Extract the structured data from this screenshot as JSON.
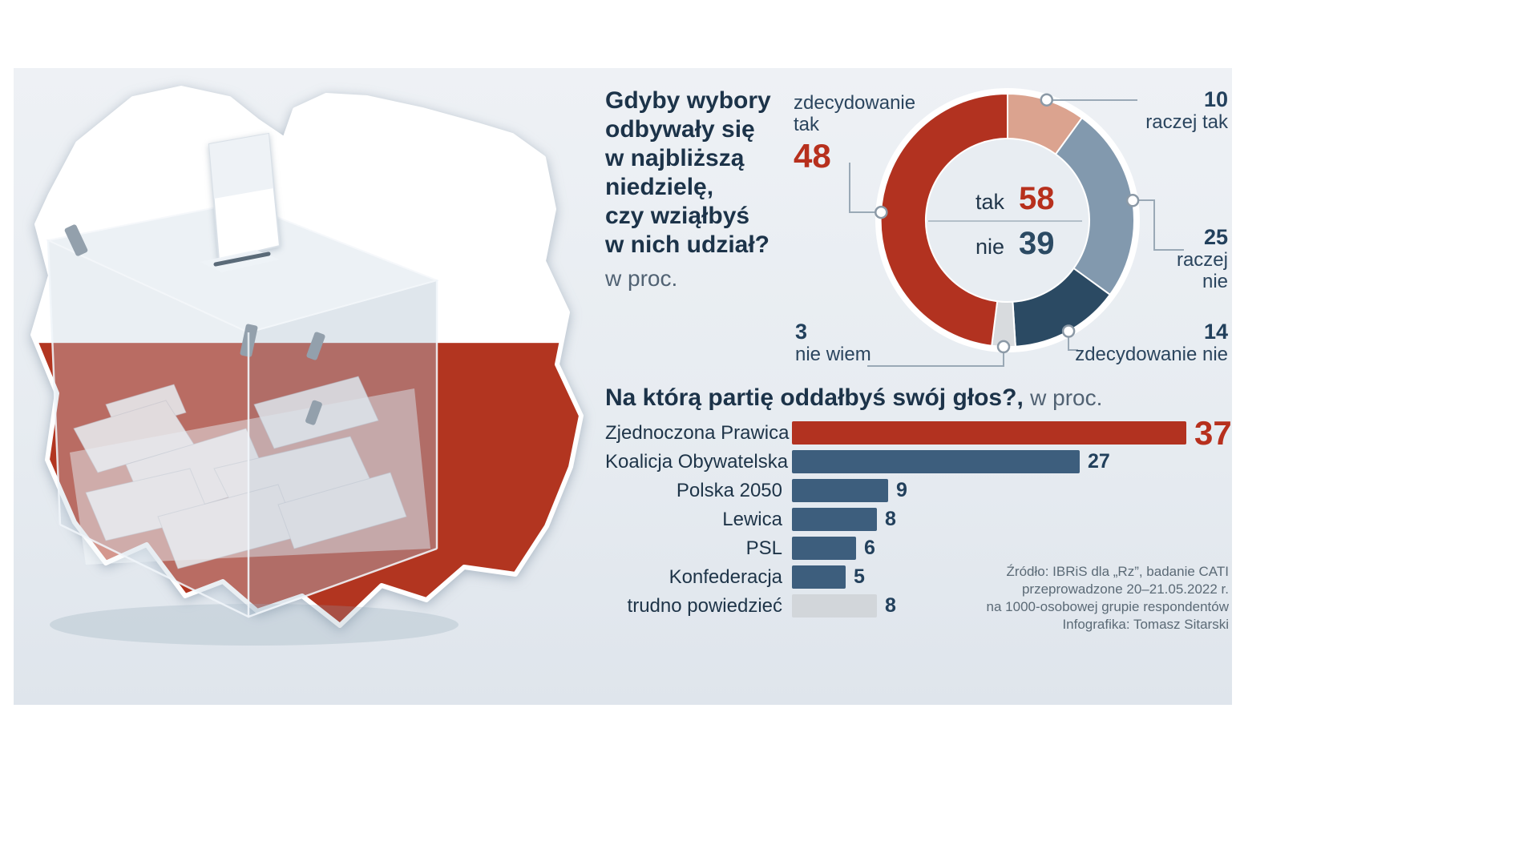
{
  "page": {
    "panel_bg": "#e8edf2"
  },
  "question": {
    "text": "Gdyby wybory\nodbywały się\nw najbliższą\nniedzielę,\nczy wziąłbyś\nw nich udział?",
    "unit": "w proc."
  },
  "chart_data": [
    {
      "type": "pie",
      "variant": "donut",
      "title": "Gdyby wybory odbywały się w najbliższą niedzielę, czy wziąłbyś w nich udział?",
      "unit": "w proc.",
      "direction": "clockwise",
      "start_angle_deg": 0,
      "segments": [
        {
          "label": "raczej tak",
          "value": 10,
          "color": "#dba38f"
        },
        {
          "label": "raczej nie",
          "value": 25,
          "color": "#8299ae"
        },
        {
          "label": "zdecydowanie nie",
          "value": 14,
          "color": "#2b4a63"
        },
        {
          "label": "nie wiem",
          "value": 3,
          "color": "#d8dbde"
        },
        {
          "label": "zdecydowanie tak",
          "value": 48,
          "color": "#b23220"
        }
      ],
      "center_summary": [
        {
          "label": "tak",
          "value": 58,
          "value_color": "#b7301d"
        },
        {
          "label": "nie",
          "value": 39,
          "value_color": "#2b4a63"
        }
      ]
    },
    {
      "type": "bar",
      "orientation": "horizontal",
      "title": "Na którą partię oddałbyś swój głos?,",
      "unit": "w proc.",
      "categories": [
        "Zjednoczona Prawica",
        "Koalicja Obywatelska",
        "Polska 2050",
        "Lewica",
        "PSL",
        "Konfederacja",
        "trudno powiedzieć"
      ],
      "values": [
        37,
        27,
        9,
        8,
        6,
        5,
        8
      ],
      "colors": [
        "#b23220",
        "#3d5e7d",
        "#3d5e7d",
        "#3d5e7d",
        "#3d5e7d",
        "#3d5e7d",
        "#d2d6da"
      ],
      "value_colors": [
        "#b7301d",
        "#22405c",
        "#22405c",
        "#22405c",
        "#22405c",
        "#22405c",
        "#22405c"
      ],
      "xlim": [
        0,
        37
      ]
    }
  ],
  "source": {
    "text": "Źródło: IBRiS dla „Rz”, badanie CATI\nprzeprowadzone 20–21.05.2022 r.\nna 1000-osobowej grupie respondentów\nInfografika: Tomasz Sitarski"
  },
  "illustration": {
    "description": "transparent ballot box filled with votes in front of Poland map in national colors",
    "flag_red": "#b23520"
  }
}
